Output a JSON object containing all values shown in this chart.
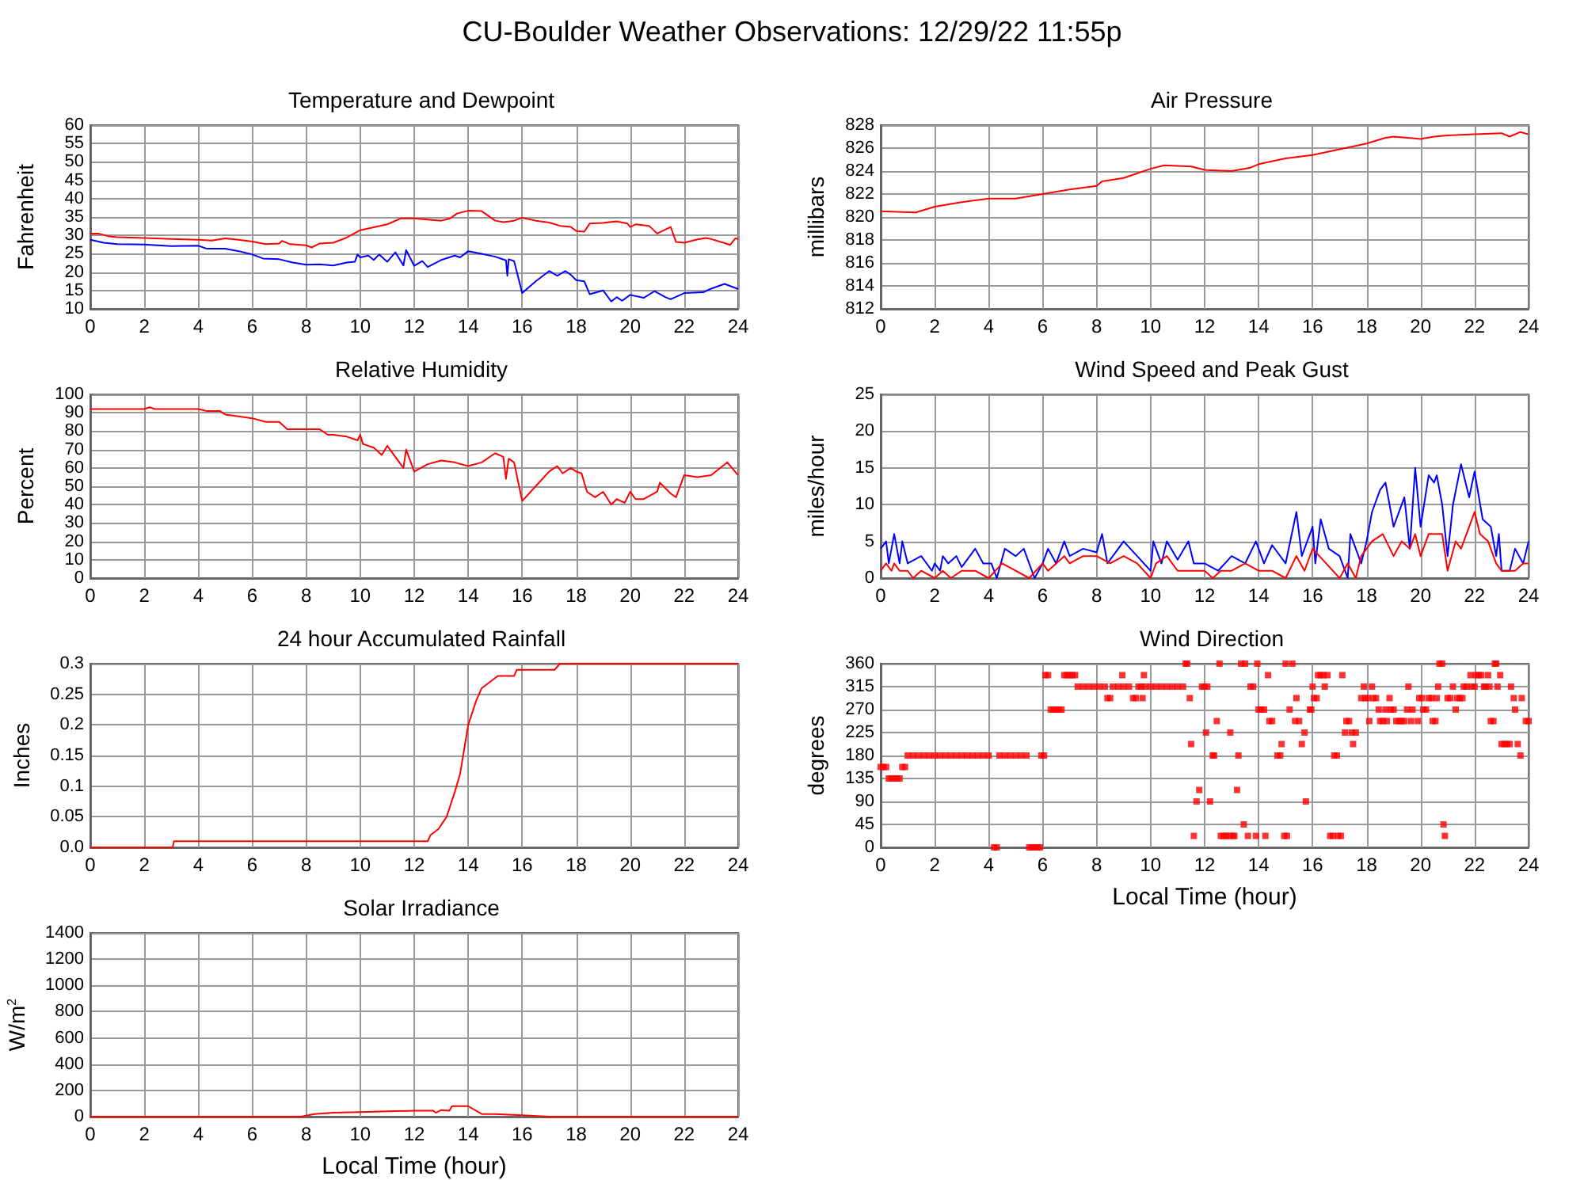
{
  "chart_data": [
    {
      "type": "line",
      "title": "CU-Boulder Weather Observations: 12/29/22 11:55p",
      "subtitle": "Temperature and Dewpoint",
      "ylabel": "Fahrenheit",
      "xlim": [
        0,
        24
      ],
      "xticks": [
        0,
        2,
        4,
        6,
        8,
        10,
        12,
        14,
        16,
        18,
        20,
        22,
        24
      ],
      "ylim": [
        10,
        60
      ],
      "yticks": [
        10,
        15,
        20,
        25,
        30,
        35,
        40,
        45,
        50,
        55,
        60
      ],
      "grid": true,
      "marker": "none",
      "line_style": "solid",
      "series": [
        {
          "color": "#ff0000",
          "x": [
            0,
            0.3,
            0.7,
            1,
            2,
            3,
            4,
            4.5,
            5,
            5.5,
            6,
            6.5,
            7,
            7.1,
            7.4,
            8,
            8.2,
            8.5,
            9,
            9.5,
            10,
            10.5,
            11,
            11.5,
            12,
            12.5,
            13,
            13.3,
            13.6,
            14,
            14.5,
            15,
            15.3,
            15.7,
            16,
            16.5,
            17,
            17.4,
            17.8,
            18,
            18.3,
            18.5,
            19,
            19.5,
            19.9,
            20,
            20.2,
            20.7,
            21,
            21.5,
            21.7,
            22,
            22.5,
            22.8,
            23,
            23.5,
            23.7,
            23.9,
            24
          ],
          "values": [
            30.5,
            30.5,
            29.7,
            29.5,
            29.3,
            29,
            28.8,
            28.6,
            29.2,
            28.8,
            28.3,
            27.6,
            27.8,
            28.5,
            27.6,
            27.3,
            26.7,
            27.8,
            28,
            29.4,
            31.4,
            32.2,
            33,
            34.6,
            34.6,
            34.3,
            34,
            34.5,
            36,
            36.7,
            36.6,
            34,
            33.6,
            34,
            34.8,
            34,
            33.5,
            32.6,
            32.3,
            31.2,
            31,
            33.2,
            33.4,
            33.8,
            33.2,
            32.3,
            33,
            32.6,
            30.5,
            32.3,
            28.2,
            28,
            28.9,
            29.3,
            29,
            27.9,
            27.4,
            29.2,
            29
          ]
        },
        {
          "color": "#0000ff",
          "x": [
            0,
            0.5,
            1,
            2,
            3,
            4,
            4.3,
            5,
            5.5,
            6,
            6.4,
            7,
            7.5,
            8,
            8.5,
            9,
            9.5,
            9.8,
            9.9,
            10,
            10.3,
            10.5,
            10.7,
            11,
            11.3,
            11.6,
            11.7,
            12,
            12.3,
            12.5,
            13,
            13.5,
            13.7,
            14,
            14.5,
            15,
            15.4,
            15.45,
            15.5,
            15.7,
            16,
            16.5,
            17,
            17.3,
            17.6,
            17.8,
            18,
            18.3,
            18.5,
            19,
            19.3,
            19.5,
            19.7,
            20,
            20.5,
            20.9,
            21.3,
            21.5,
            22,
            22.7,
            23,
            23.5,
            24
          ],
          "values": [
            28.8,
            28,
            27.6,
            27.5,
            27.1,
            27.2,
            26.4,
            26.4,
            25.7,
            24.8,
            23.7,
            23.5,
            22.6,
            22,
            22.1,
            21.8,
            22.6,
            22.8,
            24.8,
            24,
            24.5,
            23.3,
            24.8,
            22.8,
            25.4,
            21.8,
            26,
            21.7,
            23,
            21.4,
            23.3,
            24.5,
            24,
            25.7,
            25,
            24.2,
            23.2,
            19,
            23.5,
            23,
            14.3,
            17.5,
            20.3,
            19,
            20.3,
            19.3,
            17.8,
            17.5,
            14,
            15,
            12,
            13.2,
            12.2,
            13.8,
            13,
            14.8,
            13.2,
            12.6,
            14.3,
            14.5,
            15.5,
            16.8,
            15.4
          ]
        }
      ]
    },
    {
      "type": "line",
      "title": "Air Pressure",
      "ylabel": "millibars",
      "xlim": [
        0,
        24
      ],
      "xticks": [
        0,
        2,
        4,
        6,
        8,
        10,
        12,
        14,
        16,
        18,
        20,
        22,
        24
      ],
      "ylim": [
        812,
        828
      ],
      "yticks": [
        812,
        814,
        816,
        818,
        820,
        822,
        824,
        826,
        828
      ],
      "grid": true,
      "marker": "none",
      "line_style": "solid",
      "series": [
        {
          "color": "#ff0000",
          "x": [
            0,
            1.3,
            2,
            3,
            4,
            5,
            6,
            7,
            8,
            8.2,
            9,
            10,
            10.5,
            11.5,
            12,
            13,
            13.7,
            14,
            15,
            16,
            17,
            18,
            18.7,
            19,
            20,
            20.5,
            21,
            22,
            23,
            23.3,
            23.7,
            24
          ],
          "values": [
            820.5,
            820.4,
            820.9,
            821.3,
            821.6,
            821.6,
            822,
            822.4,
            822.7,
            823.1,
            823.4,
            824.2,
            824.5,
            824.4,
            824.1,
            824,
            824.3,
            824.6,
            825.1,
            825.4,
            825.9,
            826.4,
            826.9,
            827,
            826.8,
            827,
            827.1,
            827.2,
            827.3,
            827,
            827.4,
            827.2
          ]
        }
      ]
    },
    {
      "type": "line",
      "title": "Relative Humidity",
      "ylabel": "Percent",
      "xlim": [
        0,
        24
      ],
      "xticks": [
        0,
        2,
        4,
        6,
        8,
        10,
        12,
        14,
        16,
        18,
        20,
        22,
        24
      ],
      "ylim": [
        0,
        100
      ],
      "yticks": [
        0,
        10,
        20,
        30,
        40,
        50,
        60,
        70,
        80,
        90,
        100
      ],
      "grid": true,
      "marker": "none",
      "line_style": "solid",
      "series": [
        {
          "color": "#ff0000",
          "x": [
            0,
            2,
            2.2,
            2.4,
            4,
            4.3,
            4.8,
            5,
            5.5,
            6,
            6.5,
            7,
            7.3,
            8,
            8.5,
            8.8,
            9,
            9.5,
            9.9,
            10,
            10.1,
            10.5,
            10.8,
            11,
            11.3,
            11.6,
            11.7,
            12,
            12.5,
            13,
            13.5,
            14,
            14.5,
            15,
            15.3,
            15.4,
            15.5,
            15.7,
            16,
            16.5,
            17,
            17.3,
            17.5,
            17.8,
            18,
            18.2,
            18.4,
            18.7,
            19,
            19.3,
            19.5,
            19.8,
            20,
            20.2,
            20.5,
            21,
            21.1,
            21.5,
            21.7,
            22,
            22.5,
            23,
            23.6,
            24
          ],
          "values": [
            92,
            92,
            93,
            92,
            92,
            91,
            91,
            89,
            88,
            87,
            85,
            85,
            81,
            81,
            81,
            78,
            78,
            77,
            75,
            78,
            73,
            71,
            67,
            72,
            66,
            60,
            70,
            58,
            62,
            64,
            63,
            61,
            63,
            68,
            66,
            54,
            65,
            63,
            42,
            50,
            58,
            61,
            57,
            60,
            58,
            57,
            47,
            44,
            47,
            40,
            43,
            41,
            47,
            43,
            43,
            47,
            52,
            46,
            44,
            56,
            55,
            56,
            63,
            56
          ]
        }
      ]
    },
    {
      "type": "line",
      "title": "Wind Speed and Peak Gust",
      "ylabel": "miles/hour",
      "xlim": [
        0,
        24
      ],
      "xticks": [
        0,
        2,
        4,
        6,
        8,
        10,
        12,
        14,
        16,
        18,
        20,
        22,
        24
      ],
      "ylim": [
        0,
        25
      ],
      "yticks": [
        0,
        5,
        10,
        15,
        20,
        25
      ],
      "grid": true,
      "marker": "none",
      "line_style": "solid",
      "series": [
        {
          "color": "#0000ff",
          "x": [
            0,
            0.2,
            0.3,
            0.5,
            0.7,
            0.8,
            1,
            1.5,
            1.9,
            2,
            2.2,
            2.3,
            2.5,
            2.8,
            3,
            3.5,
            3.8,
            4.1,
            4.3,
            4.6,
            5,
            5.3,
            5.7,
            6,
            6.2,
            6.5,
            6.8,
            7,
            7.5,
            8,
            8.2,
            8.4,
            9,
            9.5,
            10,
            10.1,
            10.4,
            10.6,
            11,
            11.4,
            11.6,
            12,
            12.5,
            13,
            13.5,
            13.9,
            14.2,
            14.5,
            15,
            15.4,
            15.6,
            16,
            16.1,
            16.3,
            16.6,
            17,
            17.3,
            17.4,
            17.8,
            18,
            18.2,
            18.5,
            18.7,
            19,
            19.4,
            19.6,
            19.8,
            20,
            20.3,
            20.5,
            20.6,
            20.8,
            21,
            21.2,
            21.5,
            21.8,
            22,
            22.3,
            22.6,
            22.8,
            22.9,
            23,
            23.3,
            23.5,
            23.8,
            24
          ],
          "values": [
            4,
            5,
            2,
            6,
            2,
            5,
            2,
            3,
            1,
            2,
            1,
            3,
            2,
            3,
            1.5,
            4,
            2,
            2,
            0,
            4,
            3,
            4,
            0,
            2,
            4,
            2,
            5,
            3,
            4,
            3.5,
            6,
            2,
            5,
            3,
            1,
            5,
            2,
            5,
            2.5,
            5,
            2,
            2,
            1,
            3,
            2,
            5,
            2,
            4.5,
            2,
            9,
            3,
            7,
            2,
            8,
            4,
            3,
            0,
            6,
            2,
            5,
            9,
            12,
            13,
            7,
            11,
            4,
            15,
            7,
            14,
            13,
            14,
            10,
            3,
            10,
            15.5,
            11,
            14.5,
            8,
            7,
            3,
            6,
            1,
            1,
            4,
            2,
            5
          ]
        },
        {
          "color": "#ff0000",
          "x": [
            0,
            0.2,
            0.4,
            0.5,
            0.7,
            1,
            1.2,
            1.5,
            2,
            2.3,
            2.6,
            3,
            3.5,
            4,
            4.5,
            5,
            5.5,
            6,
            6.2,
            6.5,
            6.8,
            7,
            7.5,
            8,
            8.5,
            9,
            9.5,
            10,
            10.2,
            10.6,
            11,
            11.5,
            12,
            12.3,
            12.6,
            13,
            13.5,
            14,
            14.5,
            15,
            15.4,
            15.7,
            16,
            16.5,
            17,
            17.3,
            17.6,
            17.8,
            18.2,
            18.6,
            19,
            19.3,
            19.6,
            19.8,
            20,
            20.3,
            20.8,
            21,
            21.3,
            21.5,
            21.8,
            22,
            22.2,
            22.5,
            22.8,
            23,
            23.5,
            23.8,
            24
          ],
          "values": [
            1,
            2,
            1,
            2,
            1,
            1,
            0,
            1,
            0,
            1,
            0,
            1,
            1,
            0,
            2,
            1,
            0,
            2,
            1,
            2,
            3,
            2,
            3,
            3,
            2,
            3,
            2,
            0,
            2,
            3,
            1,
            1,
            1,
            0,
            1,
            1,
            2,
            1,
            1,
            0,
            3,
            1,
            4,
            2,
            0,
            2,
            0,
            3,
            5,
            6,
            3,
            5,
            4,
            6,
            3,
            6,
            6,
            1,
            5,
            4,
            7,
            9,
            6,
            5,
            2,
            1,
            1,
            2,
            2
          ]
        }
      ]
    },
    {
      "type": "line",
      "title": "24 hour Accumulated Rainfall",
      "ylabel": "Inches",
      "xlim": [
        0,
        24
      ],
      "xticks": [
        0,
        2,
        4,
        6,
        8,
        10,
        12,
        14,
        16,
        18,
        20,
        22,
        24
      ],
      "ylim": [
        0,
        0.3
      ],
      "yticks": [
        {
          "value": 0,
          "label": "0.0"
        },
        0.05,
        0.1,
        0.15,
        0.2,
        0.25,
        0.3
      ],
      "grid": true,
      "marker": "none",
      "line_style": "solid",
      "series": [
        {
          "color": "#ff0000",
          "x": [
            0,
            3.05,
            3.1,
            12.5,
            12.6,
            12.9,
            13.2,
            13.5,
            13.7,
            14,
            14.3,
            14.5,
            14.8,
            15.1,
            15.7,
            15.8,
            17.2,
            17.4,
            24
          ],
          "values": [
            0,
            0,
            0.01,
            0.01,
            0.02,
            0.03,
            0.05,
            0.09,
            0.12,
            0.2,
            0.24,
            0.26,
            0.27,
            0.28,
            0.28,
            0.29,
            0.29,
            0.3,
            0.3
          ]
        }
      ]
    },
    {
      "type": "scatter",
      "title": "Wind Direction",
      "xlabel": "Local Time (hour)",
      "ylabel": "degrees",
      "xlim": [
        0,
        24
      ],
      "xticks": [
        0,
        2,
        4,
        6,
        8,
        10,
        12,
        14,
        16,
        18,
        20,
        22,
        24
      ],
      "ylim": [
        0,
        360
      ],
      "yticks": [
        0,
        45,
        90,
        135,
        180,
        225,
        270,
        315,
        360
      ],
      "grid": true,
      "marker": "square",
      "series": [
        {
          "color": "#ff0000",
          "x": [
            0,
            0.1,
            0.2,
            0.3,
            0.4,
            0.5,
            0.6,
            0.7,
            0.8,
            0.9,
            1.0,
            1.2,
            1.4,
            1.6,
            1.8,
            2.0,
            2.2,
            2.4,
            2.6,
            2.8,
            3.0,
            3.2,
            3.4,
            3.6,
            3.8,
            4.0,
            4.2,
            4.3,
            4.4,
            4.6,
            4.8,
            5.0,
            5.2,
            5.4,
            5.5,
            5.6,
            5.7,
            5.8,
            5.9,
            5.95,
            6.05,
            6.1,
            6.2,
            6.3,
            6.4,
            6.5,
            6.6,
            6.7,
            6.8,
            6.9,
            7.0,
            7.1,
            7.2,
            7.3,
            7.5,
            7.7,
            7.9,
            8.1,
            8.3,
            8.4,
            8.5,
            8.6,
            8.8,
            8.95,
            9.0,
            9.2,
            9.35,
            9.45,
            9.55,
            9.65,
            9.7,
            9.75,
            9.8,
            10.0,
            10.2,
            10.4,
            10.6,
            10.8,
            11.0,
            11.2,
            11.3,
            11.35,
            11.45,
            11.5,
            11.6,
            11.7,
            11.8,
            11.9,
            12.0,
            12.05,
            12.1,
            12.2,
            12.3,
            12.35,
            12.45,
            12.55,
            12.6,
            12.7,
            12.8,
            12.9,
            12.95,
            13.05,
            13.1,
            13.2,
            13.25,
            13.35,
            13.45,
            13.5,
            13.6,
            13.7,
            13.8,
            13.9,
            13.95,
            14.0,
            14.1,
            14.2,
            14.25,
            14.35,
            14.4,
            14.5,
            14.7,
            14.8,
            14.85,
            14.95,
            15.0,
            15.05,
            15.15,
            15.25,
            15.35,
            15.4,
            15.5,
            15.6,
            15.7,
            15.75,
            15.9,
            15.95,
            16.0,
            16.05,
            16.15,
            16.2,
            16.3,
            16.4,
            16.45,
            16.55,
            16.65,
            16.75,
            16.8,
            16.9,
            16.95,
            17.05,
            17.1,
            17.2,
            17.25,
            17.35,
            17.45,
            17.5,
            17.6,
            17.8,
            17.9,
            17.95,
            18.05,
            18.1,
            18.2,
            18.25,
            18.35,
            18.45,
            18.5,
            18.6,
            18.7,
            18.75,
            18.85,
            18.9,
            19.0,
            19.1,
            19.2,
            19.3,
            19.4,
            19.5,
            19.55,
            19.65,
            19.7,
            19.9,
            19.95,
            20.05,
            20.1,
            20.2,
            20.3,
            20.4,
            20.45,
            20.55,
            20.6,
            20.65,
            20.7,
            20.8,
            20.85,
            20.9,
            21.0,
            21.1,
            21.2,
            21.3,
            21.35,
            21.45,
            21.55,
            21.6,
            21.7,
            21.85,
            21.9,
            22.0,
            22.05,
            22.15,
            22.25,
            22.35,
            22.4,
            22.5,
            22.55,
            22.6,
            22.7,
            22.75,
            22.8,
            22.85,
            22.95,
            23.0,
            23.1,
            23.2,
            23.3,
            23.35,
            23.45,
            23.5,
            23.6,
            23.7,
            23.75,
            23.9,
            24.0
          ],
          "values": [
            157.5,
            157.5,
            157.5,
            135,
            135,
            135,
            135,
            135,
            157.5,
            157.5,
            180,
            180,
            180,
            180,
            180,
            180,
            180,
            180,
            180,
            180,
            180,
            180,
            180,
            180,
            180,
            180,
            0,
            0,
            180,
            180,
            180,
            180,
            180,
            180,
            0,
            0,
            0,
            0,
            0,
            180,
            180,
            337.5,
            337.5,
            270,
            270,
            270,
            270,
            270,
            337.5,
            337.5,
            337.5,
            337.5,
            337.5,
            315,
            315,
            315,
            315,
            315,
            315,
            292.5,
            292.5,
            315,
            315,
            337.5,
            315,
            315,
            292.5,
            292.5,
            315,
            315,
            292.5,
            337.5,
            315,
            315,
            315,
            315,
            315,
            315,
            315,
            315,
            360,
            360,
            292.5,
            202.5,
            22.5,
            90,
            112.5,
            315,
            315,
            225,
            315,
            90,
            180,
            180,
            247.5,
            360,
            22.5,
            22.5,
            22.5,
            22.5,
            225,
            22.5,
            22.5,
            112.5,
            180,
            360,
            45,
            360,
            22.5,
            315,
            315,
            22.5,
            360,
            270,
            270,
            270,
            22.5,
            337.5,
            247.5,
            247.5,
            180,
            180,
            202.5,
            22.5,
            360,
            22.5,
            270,
            360,
            247.5,
            292.5,
            247.5,
            202.5,
            225,
            90,
            270,
            270,
            315,
            292.5,
            292.5,
            337.5,
            337.5,
            337.5,
            315,
            337.5,
            22.5,
            22.5,
            180,
            180,
            22.5,
            22.5,
            337.5,
            225,
            247.5,
            247.5,
            225,
            202.5,
            225,
            292.5,
            315,
            292.5,
            292.5,
            247.5,
            315,
            292.5,
            292.5,
            270,
            247.5,
            247.5,
            270,
            247.5,
            292.5,
            270,
            270,
            247.5,
            247.5,
            247.5,
            247.5,
            270,
            315,
            247.5,
            270,
            247.5,
            292.5,
            292.5,
            270,
            270,
            292.5,
            292.5,
            247.5,
            247.5,
            292.5,
            315,
            360,
            360,
            45,
            22.5,
            292.5,
            292.5,
            315,
            270,
            292.5,
            292.5,
            292.5,
            315,
            315,
            337.5,
            315,
            315,
            337.5,
            337.5,
            337.5,
            315,
            315,
            337.5,
            315,
            247.5,
            247.5,
            360,
            360,
            315,
            337.5,
            202.5,
            202.5,
            202.5,
            202.5,
            315,
            292.5,
            270,
            202.5,
            180,
            292.5,
            247.5,
            247.5
          ]
        }
      ]
    },
    {
      "type": "line",
      "title": "Solar Irradiance",
      "xlabel": "Local Time (hour)",
      "ylabel": "W/m$^{2}$",
      "xlim": [
        0,
        24
      ],
      "xticks": [
        0,
        2,
        4,
        6,
        8,
        10,
        12,
        14,
        16,
        18,
        20,
        22,
        24
      ],
      "ylim": [
        0,
        1400
      ],
      "yticks": [
        0,
        200,
        400,
        600,
        800,
        1000,
        1200,
        1400
      ],
      "grid": true,
      "marker": "none",
      "line_style": "solid",
      "series": [
        {
          "color": "#ff0000",
          "x": [
            0,
            7.8,
            8.3,
            9,
            10,
            11,
            12,
            12.7,
            12.8,
            13,
            13.3,
            13.4,
            14,
            14.5,
            15,
            16,
            17,
            24
          ],
          "values": [
            0,
            0,
            20,
            30,
            35,
            40,
            45,
            45,
            30,
            50,
            45,
            80,
            80,
            20,
            20,
            10,
            0,
            0
          ]
        }
      ]
    }
  ]
}
